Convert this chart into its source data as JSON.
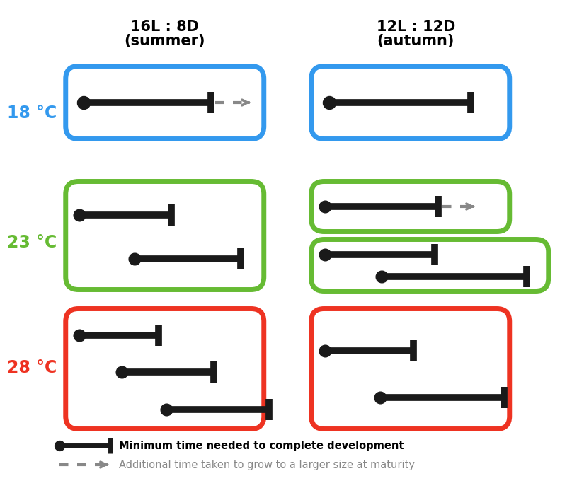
{
  "title_left_line1": "16L : 8D",
  "title_left_line2": "(summer)",
  "title_right_line1": "12L : 12D",
  "title_right_line2": "(autumn)",
  "temp_labels": [
    "18 °C",
    "23 °C",
    "28 °C"
  ],
  "temp_colors": [
    "#3399EE",
    "#66BB33",
    "#EE3322"
  ],
  "box_color_blue": "#3399EE",
  "box_color_green": "#66BB33",
  "box_color_red": "#EE3322",
  "bar_color": "#1a1a1a",
  "arrow_color": "#888888",
  "legend_solid_text": "Minimum time needed to complete development",
  "legend_dashed_text": "Additional time taken to grow to a larger size at maturity",
  "bg_color": "#FFFFFF"
}
